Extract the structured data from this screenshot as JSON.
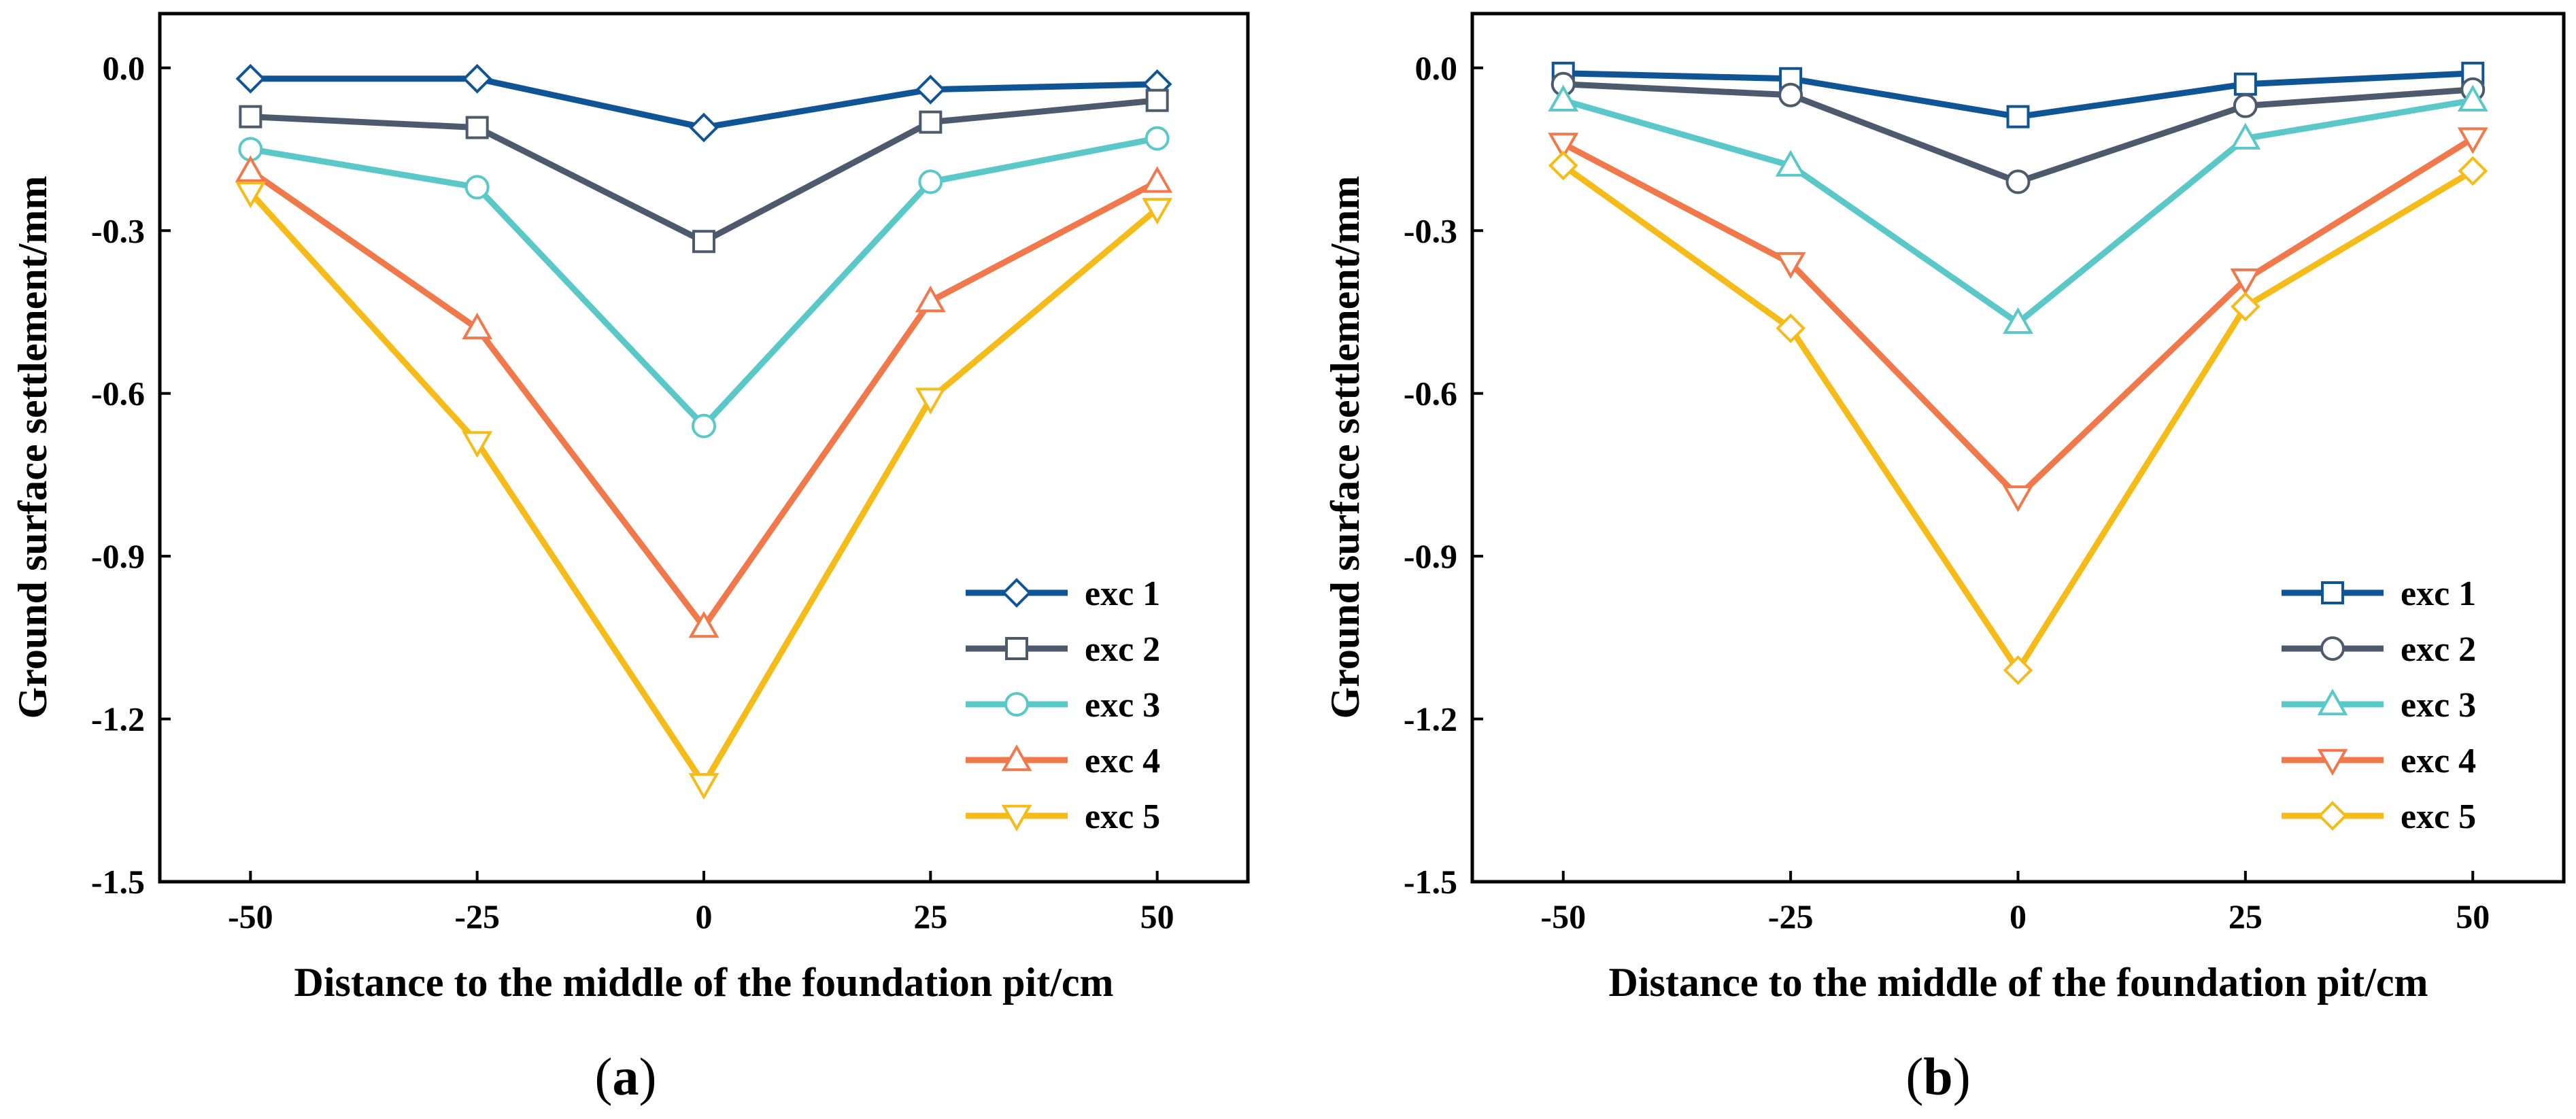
{
  "colors": {
    "exc1": "#0f5596",
    "exc2": "#4d5a6e",
    "exc3": "#5ac8c8",
    "exc4": "#f0784a",
    "exc5": "#f5bc19"
  },
  "chart_data": [
    {
      "type": "line",
      "panel_label": "a",
      "xlabel": "Distance to the middle of the foundation pit/cm",
      "ylabel": "Ground surface settlement/mm",
      "x": [
        -50,
        -25,
        0,
        25,
        50
      ],
      "x_ticks": [
        "-50",
        "-25",
        "0",
        "25",
        "50"
      ],
      "y_ticks": [
        "0.0",
        "-0.3",
        "-0.6",
        "-0.9",
        "-1.2",
        "-1.5"
      ],
      "xlim": [
        -60,
        60
      ],
      "ylim": [
        -1.5,
        0.1
      ],
      "legend_position": "bottom-right",
      "grid": false,
      "series": [
        {
          "name": "exc 1",
          "marker": "diamond",
          "color": "#0f5596",
          "values": [
            -0.02,
            -0.02,
            -0.11,
            -0.04,
            -0.03
          ]
        },
        {
          "name": "exc 2",
          "marker": "square",
          "color": "#4d5a6e",
          "values": [
            -0.09,
            -0.11,
            -0.32,
            -0.1,
            -0.06
          ]
        },
        {
          "name": "exc 3",
          "marker": "circle",
          "color": "#5ac8c8",
          "values": [
            -0.15,
            -0.22,
            -0.66,
            -0.21,
            -0.13
          ]
        },
        {
          "name": "exc 4",
          "marker": "triangle-up",
          "color": "#f0784a",
          "values": [
            -0.19,
            -0.48,
            -1.03,
            -0.43,
            -0.21
          ]
        },
        {
          "name": "exc 5",
          "marker": "triangle-down",
          "color": "#f5bc19",
          "values": [
            -0.23,
            -0.69,
            -1.32,
            -0.61,
            -0.26
          ]
        }
      ]
    },
    {
      "type": "line",
      "panel_label": "b",
      "xlabel": "Distance to the middle of the foundation pit/cm",
      "ylabel": "Ground surface settlement/mm",
      "x": [
        -50,
        -25,
        0,
        25,
        50
      ],
      "x_ticks": [
        "-50",
        "-25",
        "0",
        "25",
        "50"
      ],
      "y_ticks": [
        "0.0",
        "-0.3",
        "-0.6",
        "-0.9",
        "-1.2",
        "-1.5"
      ],
      "xlim": [
        -60,
        60
      ],
      "ylim": [
        -1.5,
        0.1
      ],
      "legend_position": "bottom-right",
      "grid": false,
      "series": [
        {
          "name": "exc 1",
          "marker": "square",
          "color": "#0f5596",
          "values": [
            -0.01,
            -0.02,
            -0.09,
            -0.03,
            -0.01
          ]
        },
        {
          "name": "exc 2",
          "marker": "circle",
          "color": "#4d5a6e",
          "values": [
            -0.03,
            -0.05,
            -0.21,
            -0.07,
            -0.04
          ]
        },
        {
          "name": "exc 3",
          "marker": "triangle-up",
          "color": "#5ac8c8",
          "values": [
            -0.06,
            -0.18,
            -0.47,
            -0.13,
            -0.06
          ]
        },
        {
          "name": "exc 4",
          "marker": "triangle-down",
          "color": "#f0784a",
          "values": [
            -0.14,
            -0.36,
            -0.79,
            -0.39,
            -0.13
          ]
        },
        {
          "name": "exc 5",
          "marker": "diamond",
          "color": "#f5bc19",
          "values": [
            -0.18,
            -0.48,
            -1.11,
            -0.44,
            -0.19
          ]
        }
      ]
    }
  ]
}
